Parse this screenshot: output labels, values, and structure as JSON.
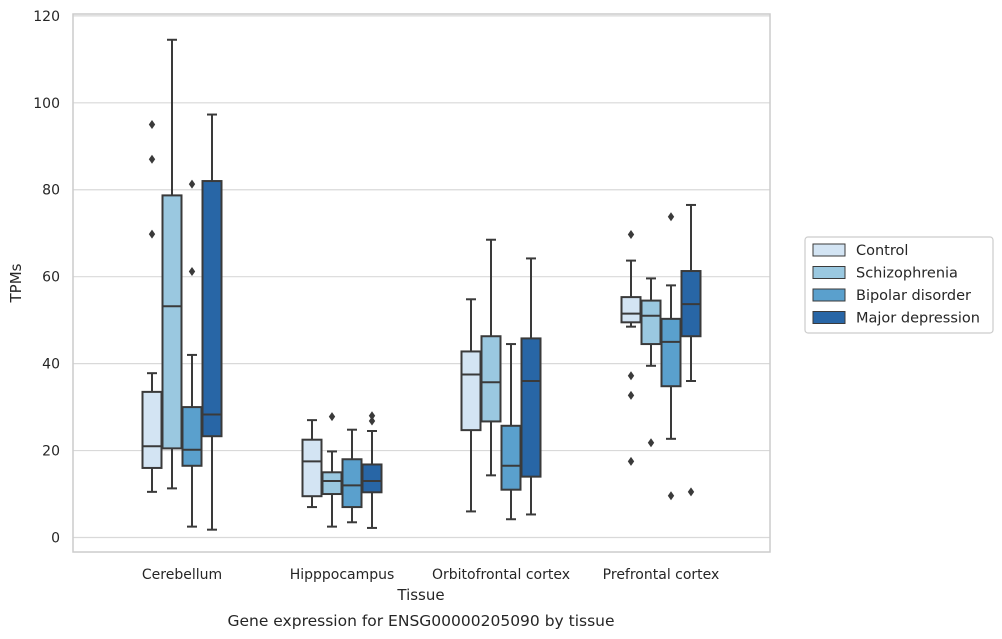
{
  "chart_data": {
    "type": "box",
    "title": "Gene expression for ENSG00000205090 by tissue",
    "xlabel": "Tissue",
    "ylabel": "TPMs",
    "ylim": [
      -4,
      121
    ],
    "yticks": [
      0,
      20,
      40,
      60,
      80,
      100,
      120
    ],
    "grid": "horizontal",
    "legend_position": "right",
    "categories": [
      "Cerebellum",
      "Hipppocampus",
      "Orbitofrontal cortex",
      "Prefrontal cortex"
    ],
    "series": [
      {
        "name": "Control",
        "color": "#d3e4f3",
        "boxes": [
          {
            "whisker_low": 10.5,
            "q1": 16,
            "median": 21,
            "q3": 33.5,
            "whisker_high": 37.8,
            "outliers": [
              95,
              87,
              69.8
            ]
          },
          {
            "whisker_low": 7,
            "q1": 9.5,
            "median": 17.5,
            "q3": 22.5,
            "whisker_high": 27,
            "outliers": []
          },
          {
            "whisker_low": 6,
            "q1": 24.7,
            "median": 37.5,
            "q3": 42.8,
            "whisker_high": 54.8,
            "outliers": []
          },
          {
            "whisker_low": 48.5,
            "q1": 49.5,
            "median": 51.5,
            "q3": 55.3,
            "whisker_high": 63.7,
            "outliers": [
              69.7,
              37.2,
              32.7,
              17.5
            ]
          }
        ]
      },
      {
        "name": "Schizophrenia",
        "color": "#9ac8e0",
        "boxes": [
          {
            "whisker_low": 11.3,
            "q1": 20.5,
            "median": 53.2,
            "q3": 78.7,
            "whisker_high": 114.5,
            "outliers": []
          },
          {
            "whisker_low": 2.5,
            "q1": 10,
            "median": 13,
            "q3": 15,
            "whisker_high": 19.8,
            "outliers": [
              27.8
            ]
          },
          {
            "whisker_low": 14.3,
            "q1": 26.7,
            "median": 35.7,
            "q3": 46.3,
            "whisker_high": 68.5,
            "outliers": []
          },
          {
            "whisker_low": 39.5,
            "q1": 44.5,
            "median": 51,
            "q3": 54.5,
            "whisker_high": 59.6,
            "outliers": [
              21.8
            ]
          }
        ]
      },
      {
        "name": "Bipolar disorder",
        "color": "#5aa0cd",
        "boxes": [
          {
            "whisker_low": 2.5,
            "q1": 16.5,
            "median": 20.2,
            "q3": 30,
            "whisker_high": 42,
            "outliers": [
              81.3,
              61.2
            ]
          },
          {
            "whisker_low": 3.5,
            "q1": 7,
            "median": 12,
            "q3": 18,
            "whisker_high": 24.8,
            "outliers": []
          },
          {
            "whisker_low": 4.2,
            "q1": 11,
            "median": 16.5,
            "q3": 25.7,
            "whisker_high": 44.5,
            "outliers": []
          },
          {
            "whisker_low": 22.7,
            "q1": 34.8,
            "median": 45,
            "q3": 50.3,
            "whisker_high": 58,
            "outliers": [
              73.8,
              9.6
            ]
          }
        ]
      },
      {
        "name": "Major depression",
        "color": "#2866a6",
        "boxes": [
          {
            "whisker_low": 1.8,
            "q1": 23.3,
            "median": 28.3,
            "q3": 82,
            "whisker_high": 97.3,
            "outliers": []
          },
          {
            "whisker_low": 2.2,
            "q1": 10.4,
            "median": 13,
            "q3": 16.8,
            "whisker_high": 24.5,
            "outliers": [
              28,
              26.8
            ]
          },
          {
            "whisker_low": 5.3,
            "q1": 14,
            "median": 36,
            "q3": 45.8,
            "whisker_high": 64.2,
            "outliers": []
          },
          {
            "whisker_low": 36,
            "q1": 46.3,
            "median": 53.7,
            "q3": 61.3,
            "whisker_high": 76.5,
            "outliers": [
              10.5
            ]
          }
        ]
      }
    ]
  }
}
